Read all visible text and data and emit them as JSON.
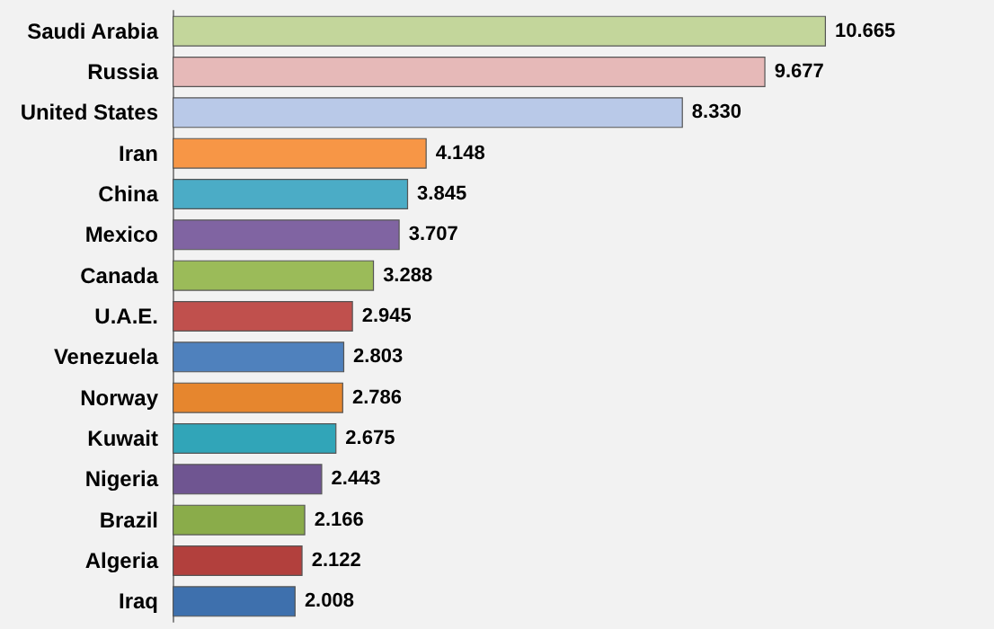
{
  "chart_data": {
    "type": "bar",
    "orientation": "horizontal",
    "categories": [
      "Saudi Arabia",
      "Russia",
      "United States",
      "Iran",
      "China",
      "Mexico",
      "Canada",
      "U.A.E.",
      "Venezuela",
      "Norway",
      "Kuwait",
      "Nigeria",
      "Brazil",
      "Algeria",
      "Iraq"
    ],
    "values": [
      10.665,
      9.677,
      8.33,
      4.148,
      3.845,
      3.707,
      3.288,
      2.945,
      2.803,
      2.786,
      2.675,
      2.443,
      2.166,
      2.122,
      2.008
    ],
    "value_labels": [
      "10.665",
      "9.677",
      "8.330",
      "4.148",
      "3.845",
      "3.707",
      "3.288",
      "2.945",
      "2.803",
      "2.786",
      "2.675",
      "2.443",
      "2.166",
      "2.122",
      "2.008"
    ],
    "colors": [
      "#c3d69b",
      "#e6b9b8",
      "#b9c9e8",
      "#f79646",
      "#4bacc6",
      "#8064a2",
      "#9bbb59",
      "#c0504d",
      "#4f81bd",
      "#e6862e",
      "#31a5b8",
      "#6f5591",
      "#8aac4a",
      "#b2403d",
      "#3e70ad"
    ]
  }
}
